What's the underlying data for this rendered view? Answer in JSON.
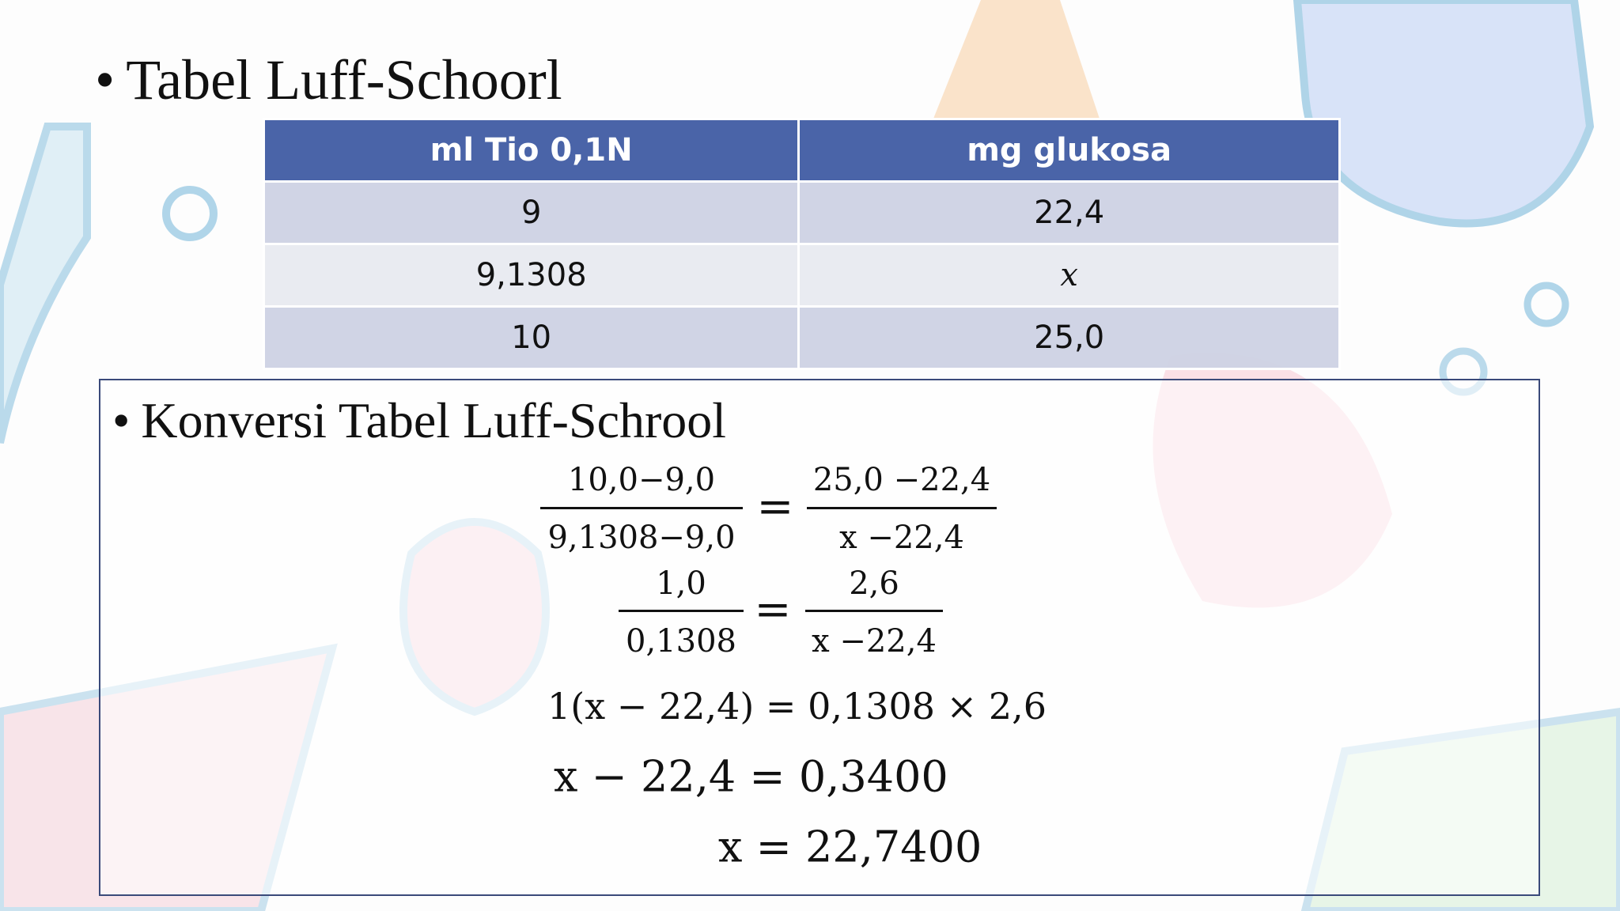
{
  "title": "Tabel Luff-Schoorl",
  "table": {
    "header": [
      "ml Tio 0,1N",
      "mg glukosa"
    ],
    "rows": [
      [
        "9",
        "22,4"
      ],
      [
        "9,1308",
        "x"
      ],
      [
        "10",
        "25,0"
      ]
    ]
  },
  "section": {
    "title": "Konversi Tabel Luff-Schrool",
    "fractions": [
      {
        "left_num": "10,0−9,0",
        "left_den": "9,1308−9,0",
        "sign": "=",
        "right_num": "25,0 −22,4",
        "right_den": "x −22,4"
      },
      {
        "left_num": "1,0",
        "left_den": "0,1308",
        "sign": "=",
        "right_num": "2,6",
        "right_den": "x −22,4"
      }
    ],
    "lines": [
      "1(x − 22,4) = 0,1308 × 2,6",
      "x − 22,4 = 0,3400",
      "x = 22,7400"
    ]
  }
}
